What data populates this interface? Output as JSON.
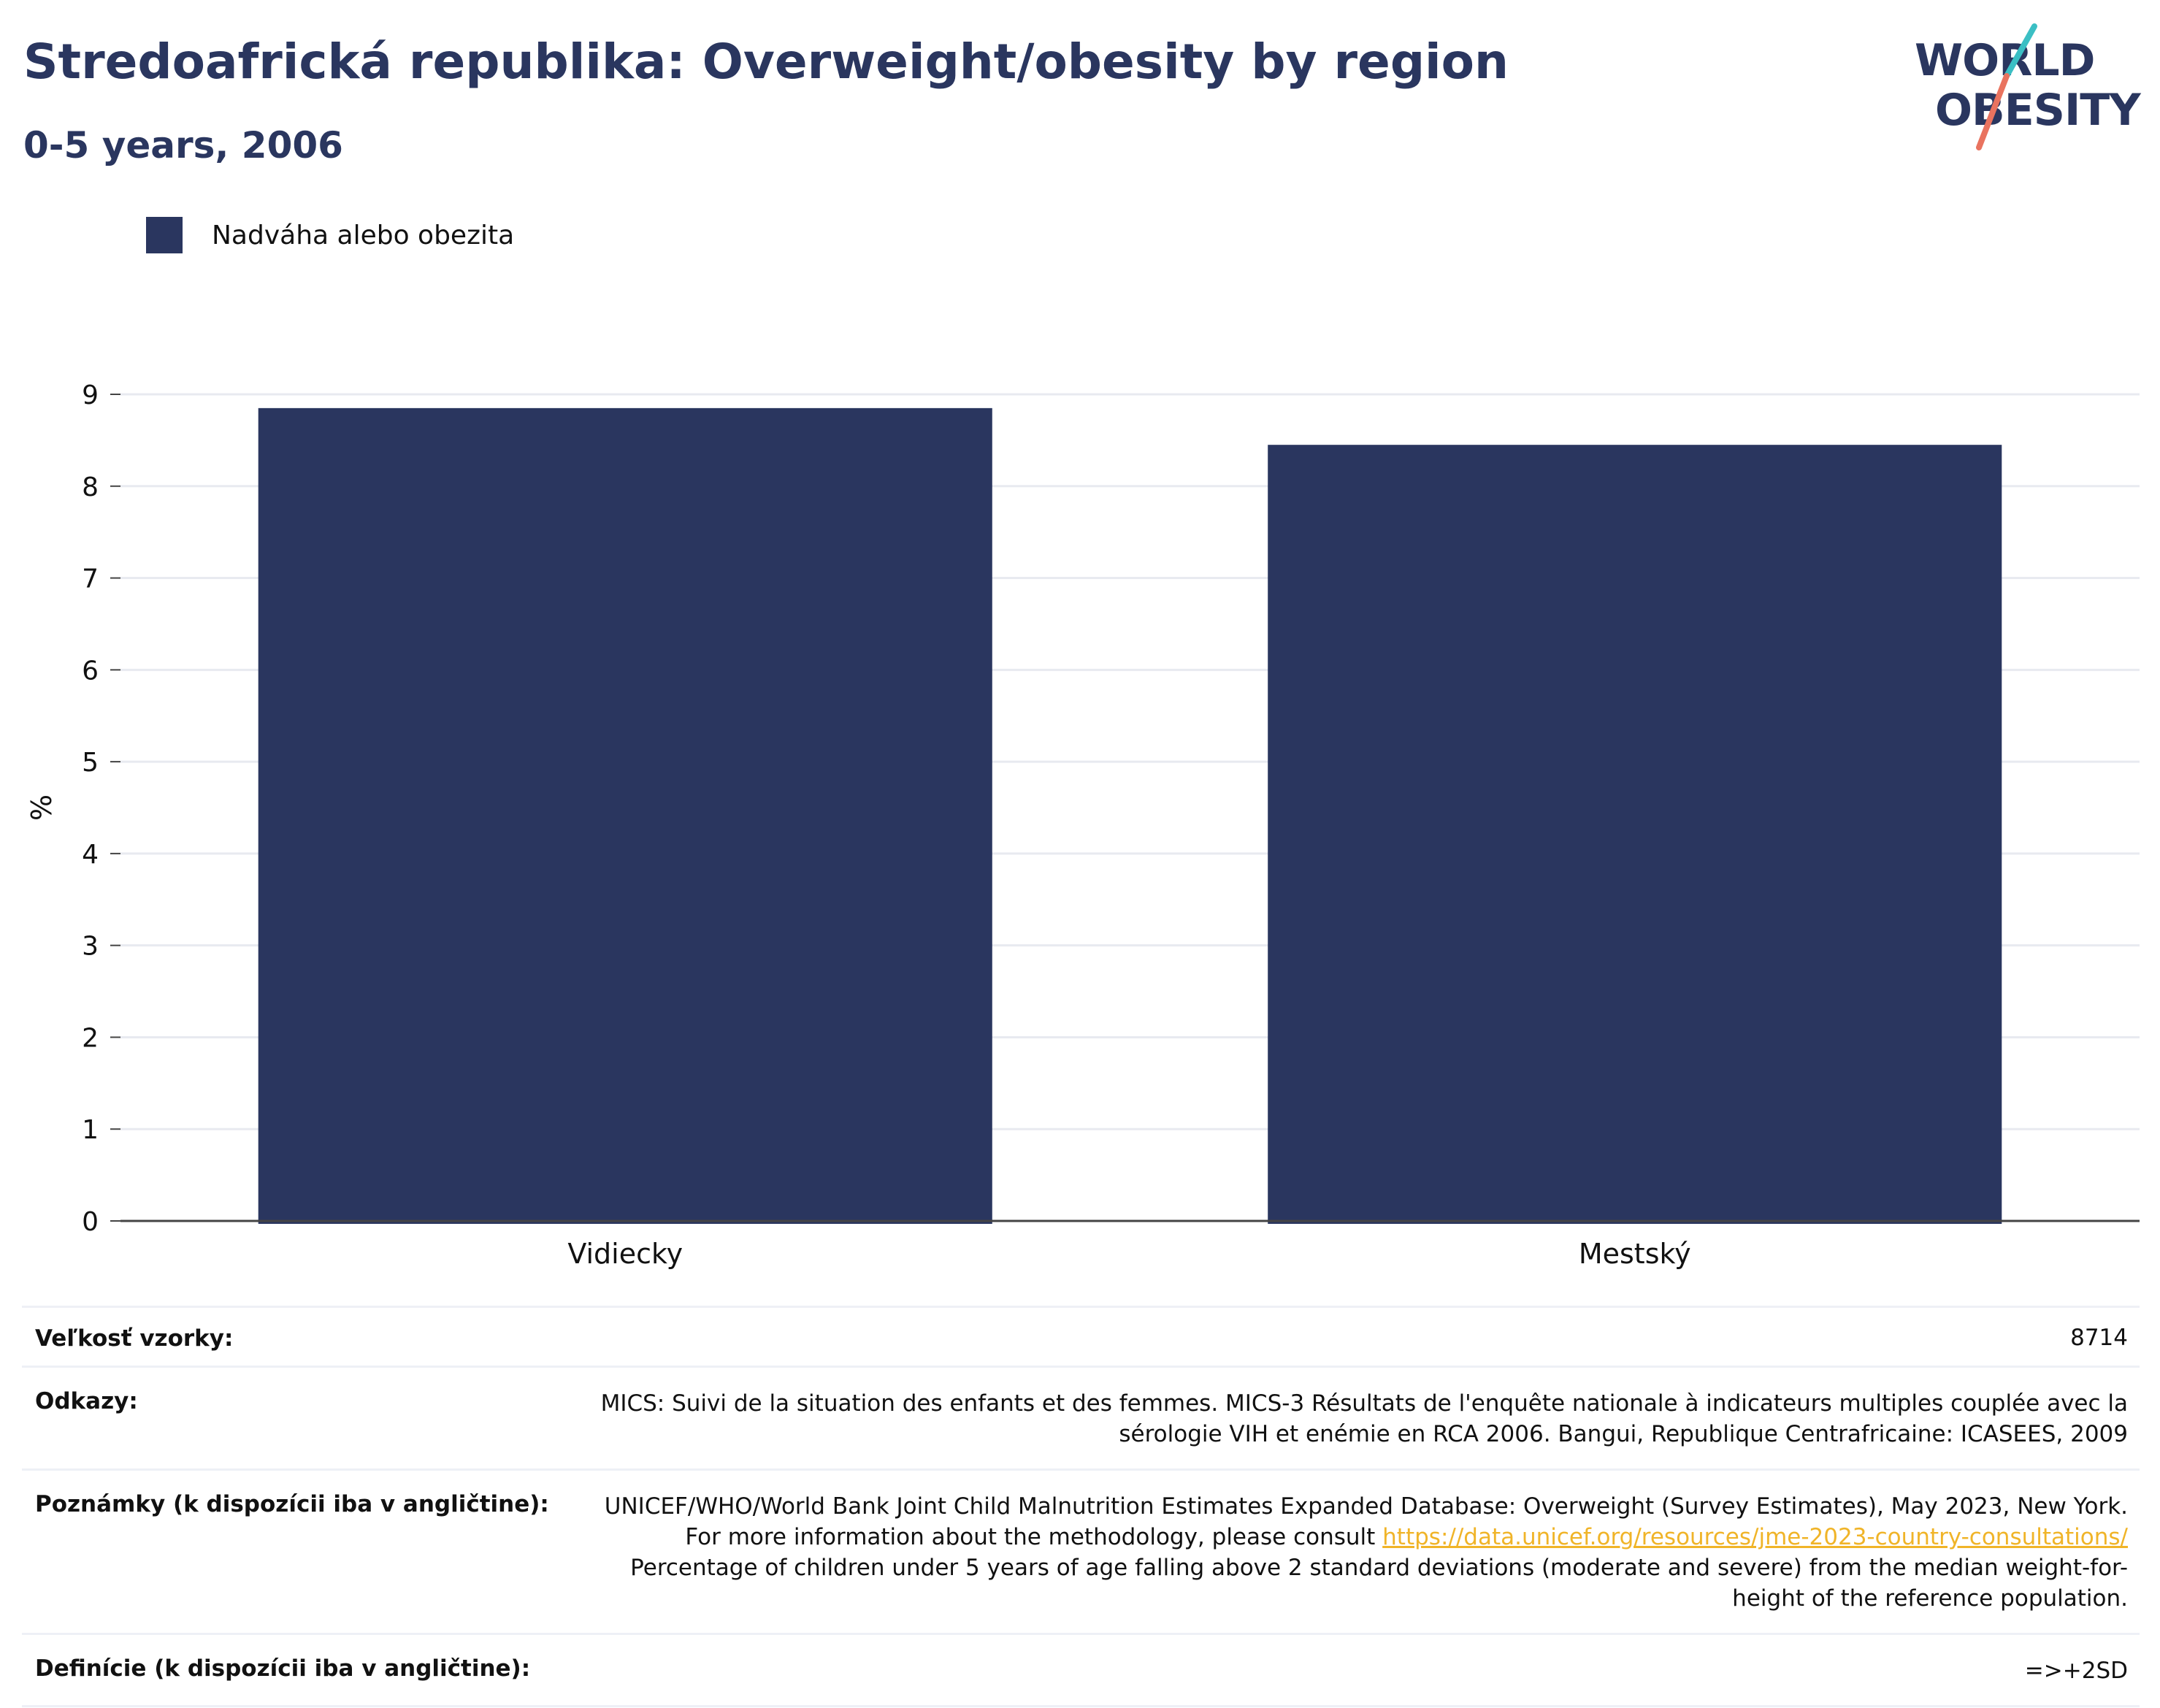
{
  "header": {
    "title": "Stredoafrická republika: Overweight/obesity by region",
    "subtitle": "0-5 years, 2006"
  },
  "logo": {
    "line1": "WORLD",
    "line2": "OBESITY",
    "slash_colors": [
      "#3bbfc4",
      "#e9735f"
    ],
    "text_color": "#2a365f"
  },
  "legend": {
    "items": [
      {
        "label": "Nadváha alebo obezita",
        "color": "#2a365f"
      }
    ]
  },
  "chart_data": {
    "type": "bar",
    "categories": [
      "Vidiecky",
      "Mestský"
    ],
    "series": [
      {
        "name": "Nadváha alebo obezita",
        "values": [
          8.85,
          8.45
        ],
        "color": "#2a365f"
      }
    ],
    "ylabel": "%",
    "xlabel": "",
    "ylim": [
      0,
      9
    ],
    "yticks": [
      0,
      1,
      2,
      3,
      4,
      5,
      6,
      7,
      8,
      9
    ],
    "grid": true,
    "legend_position": "top-left"
  },
  "info": {
    "sample_label": "Veľkosť vzorky:",
    "sample_value": "8714",
    "references_label": "Odkazy:",
    "references_value": "MICS: Suivi de la situation des enfants et des femmes. MICS-3 Résultats de l'enquête nationale à indicateurs multiples couplée avec la sérologie VIH et enémie en RCA 2006. Bangui, Republique Centrafricaine: ICASEES, 2009",
    "notes_label": "Poznámky (k dispozícii iba v angličtine):",
    "notes_value_before": "UNICEF/WHO/World Bank Joint Child Malnutrition Estimates Expanded Database: Overweight (Survey Estimates), May 2023, New York. For more information about the methodology, please consult ",
    "notes_link": "https://data.unicef.org/resources/jme-2023-country-consultations/",
    "notes_value_after": " Percentage of children under 5 years of age falling above 2 standard deviations (moderate and severe) from the median weight-for-height of the reference population.",
    "definitions_label": "Definície (k dispozícii iba v angličtine):",
    "definitions_value": "=>+2SD"
  }
}
